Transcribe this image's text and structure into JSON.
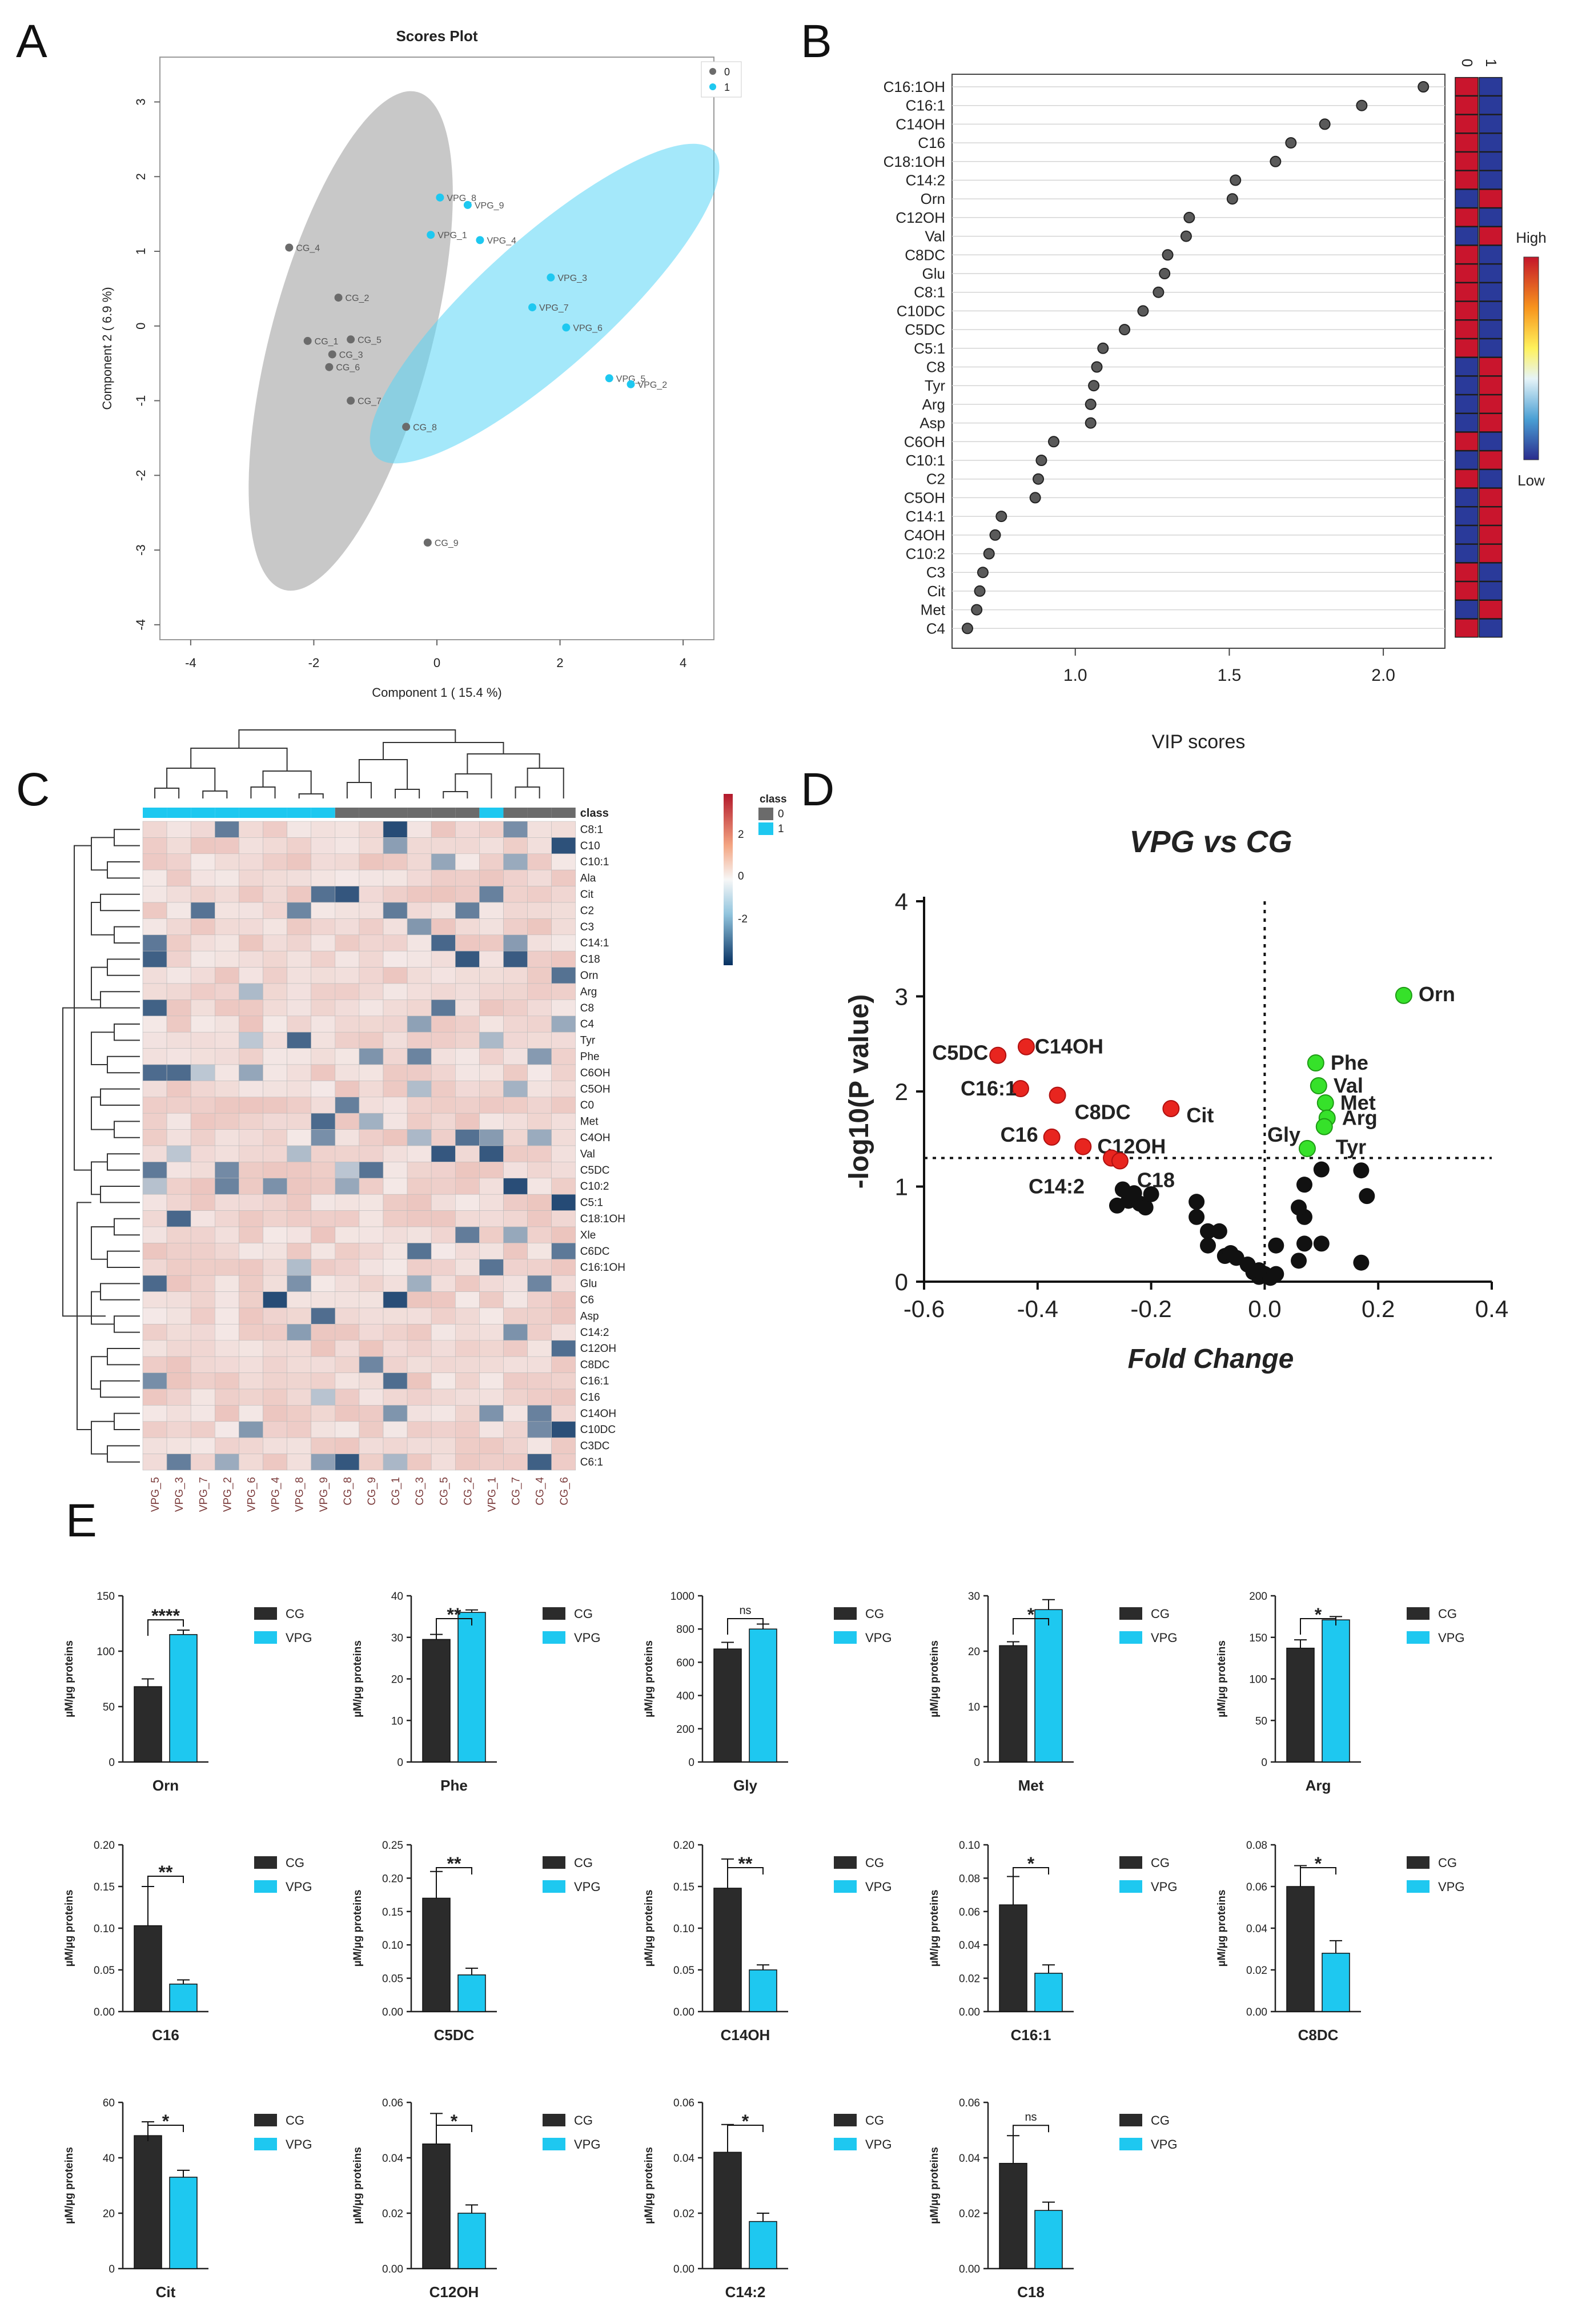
{
  "panel_labels": [
    "A",
    "B",
    "C",
    "D",
    "E"
  ],
  "colors": {
    "grey": "#7f7f7f",
    "cyan": "#1ec8f0",
    "dark_bar": "#2b2b2b",
    "red": "#e8251f",
    "green": "#36e12a",
    "black": "#111111"
  },
  "chart_data": [
    {
      "id": "A",
      "type": "scatter",
      "title": "Scores Plot",
      "xlabel": "Component 1 ( 15.4 %)",
      "ylabel": "Component 2 ( 6.9 %)",
      "xlim": [
        -4.5,
        4.5
      ],
      "ylim": [
        -4.2,
        3.6
      ],
      "xticks": [
        -4,
        -2,
        0,
        2,
        4
      ],
      "yticks": [
        -4,
        -3,
        -2,
        -1,
        0,
        1,
        2,
        3
      ],
      "legend": [
        {
          "label": "0",
          "color": "#6b6b6b"
        },
        {
          "label": "1",
          "color": "#1ec8f0"
        }
      ],
      "ellipses": [
        {
          "group": "0",
          "cx": -1.4,
          "cy": -0.2,
          "rx": 1.3,
          "ry": 3.45,
          "rot_deg": 15,
          "color": "#9a9a9a"
        },
        {
          "group": "1",
          "cx": 1.75,
          "cy": 0.3,
          "rx": 1.05,
          "ry": 3.05,
          "rot_deg": 48,
          "color": "#5ad6f5"
        }
      ],
      "points": [
        {
          "label": "CG_4",
          "x": -2.4,
          "y": 1.05,
          "group": "0"
        },
        {
          "label": "CG_2",
          "x": -1.6,
          "y": 0.38,
          "group": "0"
        },
        {
          "label": "CG_1",
          "x": -2.1,
          "y": -0.2,
          "group": "0"
        },
        {
          "label": "CG_5",
          "x": -1.4,
          "y": -0.18,
          "group": "0"
        },
        {
          "label": "CG_3",
          "x": -1.7,
          "y": -0.38,
          "group": "0"
        },
        {
          "label": "CG_6",
          "x": -1.75,
          "y": -0.55,
          "group": "0"
        },
        {
          "label": "CG_7",
          "x": -1.4,
          "y": -1.0,
          "group": "0"
        },
        {
          "label": "CG_8",
          "x": -0.5,
          "y": -1.35,
          "group": "0"
        },
        {
          "label": "CG_9",
          "x": -0.15,
          "y": -2.9,
          "group": "0"
        },
        {
          "label": "VPG_8",
          "x": 0.05,
          "y": 1.72,
          "group": "1"
        },
        {
          "label": "VPG_9",
          "x": 0.5,
          "y": 1.62,
          "group": "1"
        },
        {
          "label": "VPG_1",
          "x": -0.1,
          "y": 1.22,
          "group": "1"
        },
        {
          "label": "VPG_4",
          "x": 0.7,
          "y": 1.15,
          "group": "1"
        },
        {
          "label": "VPG_3",
          "x": 1.85,
          "y": 0.65,
          "group": "1"
        },
        {
          "label": "VPG_7",
          "x": 1.55,
          "y": 0.25,
          "group": "1"
        },
        {
          "label": "VPG_6",
          "x": 2.1,
          "y": -0.02,
          "group": "1"
        },
        {
          "label": "VPG_5",
          "x": 2.8,
          "y": -0.7,
          "group": "1"
        },
        {
          "label": "VPG_2",
          "x": 3.15,
          "y": -0.78,
          "group": "1"
        }
      ]
    },
    {
      "id": "B",
      "type": "scatter",
      "xlabel": "VIP scores",
      "xlim": [
        0.6,
        2.2
      ],
      "xticks": [
        1.0,
        1.5,
        2.0
      ],
      "heatmap_columns": [
        "0",
        "1"
      ],
      "scale_labels": {
        "high": "High",
        "low": "Low"
      },
      "items": [
        {
          "label": "C16:1OH",
          "vip": 2.13,
          "high_group": "0"
        },
        {
          "label": "C16:1",
          "vip": 1.93,
          "high_group": "0"
        },
        {
          "label": "C14OH",
          "vip": 1.81,
          "high_group": "0"
        },
        {
          "label": "C16",
          "vip": 1.7,
          "high_group": "0"
        },
        {
          "label": "C18:1OH",
          "vip": 1.65,
          "high_group": "0"
        },
        {
          "label": "C14:2",
          "vip": 1.52,
          "high_group": "0"
        },
        {
          "label": "Orn",
          "vip": 1.51,
          "high_group": "1"
        },
        {
          "label": "C12OH",
          "vip": 1.37,
          "high_group": "0"
        },
        {
          "label": "Val",
          "vip": 1.36,
          "high_group": "1"
        },
        {
          "label": "C8DC",
          "vip": 1.3,
          "high_group": "0"
        },
        {
          "label": "Glu",
          "vip": 1.29,
          "high_group": "0"
        },
        {
          "label": "C8:1",
          "vip": 1.27,
          "high_group": "0"
        },
        {
          "label": "C10DC",
          "vip": 1.22,
          "high_group": "0"
        },
        {
          "label": "C5DC",
          "vip": 1.16,
          "high_group": "0"
        },
        {
          "label": "C5:1",
          "vip": 1.09,
          "high_group": "0"
        },
        {
          "label": "C8",
          "vip": 1.07,
          "high_group": "1"
        },
        {
          "label": "Tyr",
          "vip": 1.06,
          "high_group": "1"
        },
        {
          "label": "Arg",
          "vip": 1.05,
          "high_group": "1"
        },
        {
          "label": "Asp",
          "vip": 1.05,
          "high_group": "1"
        },
        {
          "label": "C6OH",
          "vip": 0.93,
          "high_group": "0"
        },
        {
          "label": "C10:1",
          "vip": 0.89,
          "high_group": "1"
        },
        {
          "label": "C2",
          "vip": 0.88,
          "high_group": "0"
        },
        {
          "label": "C5OH",
          "vip": 0.87,
          "high_group": "1"
        },
        {
          "label": "C14:1",
          "vip": 0.76,
          "high_group": "1"
        },
        {
          "label": "C4OH",
          "vip": 0.74,
          "high_group": "1"
        },
        {
          "label": "C10:2",
          "vip": 0.72,
          "high_group": "1"
        },
        {
          "label": "C3",
          "vip": 0.7,
          "high_group": "0"
        },
        {
          "label": "Cit",
          "vip": 0.69,
          "high_group": "0"
        },
        {
          "label": "Met",
          "vip": 0.68,
          "high_group": "1"
        },
        {
          "label": "C4",
          "vip": 0.65,
          "high_group": "0"
        }
      ]
    },
    {
      "id": "C",
      "type": "heatmap",
      "columns": [
        "VPG_5",
        "VPG_3",
        "VPG_7",
        "VPG_2",
        "VPG_6",
        "VPG_4",
        "VPG_8",
        "VPG_9",
        "CG_8",
        "CG_9",
        "CG_1",
        "CG_3",
        "CG_5",
        "CG_2",
        "VPG_1",
        "CG_7",
        "CG_4",
        "CG_6"
      ],
      "column_class": [
        "1",
        "1",
        "1",
        "1",
        "1",
        "1",
        "1",
        "1",
        "0",
        "0",
        "0",
        "0",
        "0",
        "0",
        "1",
        "0",
        "0",
        "0"
      ],
      "rows": [
        "C8:1",
        "C10",
        "C10:1",
        "Ala",
        "Cit",
        "C2",
        "C3",
        "C14:1",
        "C18",
        "Orn",
        "Arg",
        "C8",
        "C4",
        "Tyr",
        "Phe",
        "C6OH",
        "C5OH",
        "C0",
        "Met",
        "C4OH",
        "Val",
        "C5DC",
        "C10:2",
        "C5:1",
        "C18:1OH",
        "Xle",
        "C6DC",
        "C16:1OH",
        "Glu",
        "C6",
        "Asp",
        "C14:2",
        "C12OH",
        "C8DC",
        "C16:1",
        "C16",
        "C14OH",
        "C10DC",
        "C3DC",
        "C6:1"
      ],
      "class_label": "class",
      "color_scale": {
        "ticks": [
          2,
          0,
          -2
        ],
        "colors": [
          "#b2182b",
          "#f7f7f7",
          "#053061"
        ]
      },
      "class_legend": {
        "title": "class",
        "entries": [
          {
            "label": "0",
            "color": "#6b6b6b"
          },
          {
            "label": "1",
            "color": "#1ec8f0"
          }
        ]
      }
    },
    {
      "id": "D",
      "type": "scatter",
      "title": "VPG vs CG",
      "xlabel": "Fold Change",
      "ylabel": "-log10(P value)",
      "xlim": [
        -0.6,
        0.4
      ],
      "ylim": [
        0,
        4
      ],
      "xticks": [
        -0.6,
        -0.4,
        -0.2,
        0.0,
        0.2,
        0.4
      ],
      "yticks": [
        0,
        1,
        2,
        3,
        4
      ],
      "threshold_y": 1.3,
      "threshold_x": 0,
      "points_down": [
        {
          "label": "C5DC",
          "x": -0.47,
          "y": 2.38
        },
        {
          "label": "C14OH",
          "x": -0.42,
          "y": 2.47
        },
        {
          "label": "C16:1",
          "x": -0.43,
          "y": 2.03
        },
        {
          "label": "C8DC",
          "x": -0.365,
          "y": 1.96
        },
        {
          "label": "Cit",
          "x": -0.165,
          "y": 1.82
        },
        {
          "label": "C16",
          "x": -0.375,
          "y": 1.52
        },
        {
          "label": "C12OH",
          "x": -0.32,
          "y": 1.42
        },
        {
          "label": "C14:2",
          "x": -0.27,
          "y": 1.3
        },
        {
          "label": "C18",
          "x": -0.255,
          "y": 1.27
        }
      ],
      "points_up": [
        {
          "label": "Orn",
          "x": 0.245,
          "y": 3.01
        },
        {
          "label": "Phe",
          "x": 0.09,
          "y": 2.3
        },
        {
          "label": "Val",
          "x": 0.095,
          "y": 2.06
        },
        {
          "label": "Met",
          "x": 0.107,
          "y": 1.88
        },
        {
          "label": "Arg",
          "x": 0.11,
          "y": 1.72
        },
        {
          "label": "Tyr",
          "x": 0.105,
          "y": 1.63
        },
        {
          "label": "Gly",
          "x": 0.075,
          "y": 1.4
        }
      ],
      "points_ns": [
        [
          -0.26,
          0.8
        ],
        [
          -0.24,
          0.85
        ],
        [
          -0.22,
          0.82
        ],
        [
          -0.25,
          0.97
        ],
        [
          -0.23,
          0.93
        ],
        [
          -0.21,
          0.78
        ],
        [
          -0.2,
          0.92
        ],
        [
          -0.12,
          0.84
        ],
        [
          -0.12,
          0.68
        ],
        [
          -0.1,
          0.53
        ],
        [
          -0.08,
          0.53
        ],
        [
          -0.1,
          0.38
        ],
        [
          -0.07,
          0.27
        ],
        [
          -0.06,
          0.3
        ],
        [
          -0.05,
          0.25
        ],
        [
          -0.03,
          0.18
        ],
        [
          -0.02,
          0.1
        ],
        [
          -0.01,
          0.05
        ],
        [
          0.0,
          0.08
        ],
        [
          0.01,
          0.04
        ],
        [
          0.02,
          0.08
        ],
        [
          0.02,
          0.38
        ],
        [
          -0.01,
          0.12
        ],
        [
          0.06,
          0.22
        ],
        [
          0.07,
          0.4
        ],
        [
          0.07,
          0.68
        ],
        [
          0.06,
          0.78
        ],
        [
          0.07,
          1.02
        ],
        [
          0.1,
          1.18
        ],
        [
          0.1,
          0.4
        ],
        [
          0.17,
          0.2
        ],
        [
          0.17,
          1.17
        ],
        [
          0.18,
          0.9
        ]
      ]
    },
    {
      "id": "E",
      "type": "bar",
      "ylabel": "µM/µg proteins",
      "legend": [
        {
          "label": "CG",
          "color": "#2b2b2b"
        },
        {
          "label": "VPG",
          "color": "#1ec8f0"
        }
      ],
      "categories": [
        "CG",
        "VPG"
      ],
      "subplots": [
        {
          "title": "Orn",
          "values": [
            68,
            115
          ],
          "errors": [
            7,
            4
          ],
          "yticks": [
            0,
            50,
            100,
            150
          ],
          "ylim": [
            0,
            150
          ],
          "sig": "****"
        },
        {
          "title": "Phe",
          "values": [
            29.5,
            36
          ],
          "errors": [
            1.2,
            0.6
          ],
          "yticks": [
            0,
            10,
            20,
            30,
            40
          ],
          "ylim": [
            0,
            40
          ],
          "sig": "**"
        },
        {
          "title": "Gly",
          "values": [
            680,
            800
          ],
          "errors": [
            40,
            30
          ],
          "yticks": [
            0,
            200,
            400,
            600,
            800,
            1000
          ],
          "ylim": [
            0,
            1000
          ],
          "sig": "ns"
        },
        {
          "title": "Met",
          "values": [
            21,
            27.5
          ],
          "errors": [
            0.7,
            1.8
          ],
          "yticks": [
            0,
            10,
            20,
            30
          ],
          "ylim": [
            0,
            30
          ],
          "sig": "*"
        },
        {
          "title": "Arg",
          "values": [
            137,
            171
          ],
          "errors": [
            10,
            4
          ],
          "yticks": [
            0,
            50,
            100,
            150,
            200
          ],
          "ylim": [
            0,
            200
          ],
          "sig": "*"
        },
        {
          "title": "C16",
          "values": [
            0.103,
            0.033
          ],
          "errors": [
            0.047,
            0.005
          ],
          "yticks": [
            "0.00",
            "0.05",
            "0.10",
            "0.15",
            "0.20"
          ],
          "ylim": [
            0,
            0.2
          ],
          "sig": "**"
        },
        {
          "title": "C5DC",
          "values": [
            0.17,
            0.055
          ],
          "errors": [
            0.04,
            0.01
          ],
          "yticks": [
            "0.00",
            "0.05",
            "0.10",
            "0.15",
            "0.20",
            "0.25"
          ],
          "ylim": [
            0,
            0.25
          ],
          "sig": "**"
        },
        {
          "title": "C14OH",
          "values": [
            0.148,
            0.05
          ],
          "errors": [
            0.035,
            0.006
          ],
          "yticks": [
            "0.00",
            "0.05",
            "0.10",
            "0.15",
            "0.20"
          ],
          "ylim": [
            0,
            0.2
          ],
          "sig": "**"
        },
        {
          "title": "C16:1",
          "values": [
            0.064,
            0.023
          ],
          "errors": [
            0.017,
            0.005
          ],
          "yticks": [
            "0.00",
            "0.02",
            "0.04",
            "0.06",
            "0.08",
            "0.10"
          ],
          "ylim": [
            0,
            0.1
          ],
          "sig": "*"
        },
        {
          "title": "C8DC",
          "values": [
            0.06,
            0.028
          ],
          "errors": [
            0.01,
            0.006
          ],
          "yticks": [
            "0.00",
            "0.02",
            "0.04",
            "0.06",
            "0.08"
          ],
          "ylim": [
            0,
            0.08
          ],
          "sig": "*"
        },
        {
          "title": "Cit",
          "values": [
            48,
            33
          ],
          "errors": [
            5,
            2.5
          ],
          "yticks": [
            0,
            20,
            40,
            60
          ],
          "ylim": [
            0,
            60
          ],
          "sig": "*"
        },
        {
          "title": "C12OH",
          "values": [
            0.045,
            0.02
          ],
          "errors": [
            0.011,
            0.003
          ],
          "yticks": [
            "0.00",
            "0.02",
            "0.04",
            "0.06"
          ],
          "ylim": [
            0,
            0.06
          ],
          "sig": "*"
        },
        {
          "title": "C14:2",
          "values": [
            0.042,
            0.017
          ],
          "errors": [
            0.01,
            0.003
          ],
          "yticks": [
            "0.00",
            "0.02",
            "0.04",
            "0.06"
          ],
          "ylim": [
            0,
            0.06
          ],
          "sig": "*"
        },
        {
          "title": "C18",
          "values": [
            0.038,
            0.021
          ],
          "errors": [
            0.01,
            0.003
          ],
          "yticks": [
            "0.00",
            "0.02",
            "0.04",
            "0.06"
          ],
          "ylim": [
            0,
            0.06
          ],
          "sig": "ns"
        }
      ]
    }
  ]
}
